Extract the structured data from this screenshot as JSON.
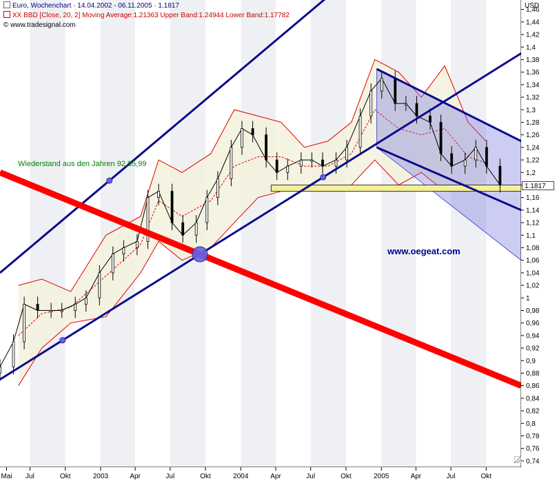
{
  "header": {
    "title": "Euro, Wochenchart · 14.04.2002 - 06.11.2005 · 1.1817",
    "indicator": "XX BBD [Close, 20, 2] Moving Average:1.21363 Upper Band:1.24944 Lower Band:1.17782",
    "source": "© www.tradesignal.com"
  },
  "annotations": {
    "resistance_note": "Wiederstand aus den Jahren 92,95,99",
    "watermark": "www.oegeat.com"
  },
  "axis": {
    "unit": "USD",
    "current_price": "1.1817"
  },
  "chart_data": {
    "type": "line",
    "title": "",
    "xlabel": "",
    "ylabel": "USD",
    "x_tick_labels": [
      "Mai",
      "Jul",
      "Okt",
      "2003",
      "Apr",
      "Jul",
      "Okt",
      "2004",
      "Apr",
      "Jul",
      "Okt",
      "2005",
      "Apr",
      "Jul",
      "Okt"
    ],
    "x_tick_dates": [
      "2002-05-01",
      "2002-07-01",
      "2002-10-01",
      "2003-01-01",
      "2003-04-01",
      "2003-07-01",
      "2003-10-01",
      "2004-01-01",
      "2004-04-01",
      "2004-07-01",
      "2004-10-01",
      "2005-01-01",
      "2005-04-01",
      "2005-07-01",
      "2005-10-01"
    ],
    "x_range": [
      "2002-04-14",
      "2005-12-31"
    ],
    "y_tick_labels": [
      "0,74",
      "0,76",
      "0,78",
      "0,8",
      "0,82",
      "0,84",
      "0,86",
      "0,88",
      "0,9",
      "0,92",
      "0,94",
      "0,96",
      "0,98",
      "1",
      "1,02",
      "1,04",
      "1,06",
      "1,08",
      "1,1",
      "1,12",
      "1,14",
      "1,16",
      "1,18",
      "1,2",
      "1,22",
      "1,24",
      "1,26",
      "1,28",
      "1,3",
      "1,32",
      "1,34",
      "1,36",
      "1,38",
      "1,4",
      "1,42",
      "1,44",
      "1,46"
    ],
    "ylim": [
      0.73,
      1.475
    ],
    "grid": false,
    "shaded_quarters": true,
    "colors": {
      "candle": "#000000",
      "bollinger": "#e00000",
      "bollinger_fill": "#f3f1dc",
      "channel": "#0a0a8c",
      "resistance_line": "#ff0000",
      "down_channel_fill": "#7070e0",
      "support_box": "#f5ef9a",
      "marker": "#6464e6"
    },
    "series": [
      {
        "type": "candlestick",
        "x": [
          "2002-04-14",
          "2002-05-19",
          "2002-06-16",
          "2002-07-21",
          "2002-08-25",
          "2002-09-22",
          "2002-10-27",
          "2002-11-24",
          "2002-12-29",
          "2003-02-02",
          "2003-03-02",
          "2003-04-06",
          "2003-05-04",
          "2003-06-01",
          "2003-07-06",
          "2003-08-03",
          "2003-09-07",
          "2003-10-05",
          "2003-11-02",
          "2003-12-07",
          "2004-01-04",
          "2004-02-01",
          "2004-03-07",
          "2004-04-04",
          "2004-05-02",
          "2004-06-06",
          "2004-07-04",
          "2004-08-01",
          "2004-09-05",
          "2004-10-03",
          "2004-11-07",
          "2004-12-05",
          "2005-01-02",
          "2005-02-06",
          "2005-03-06",
          "2005-04-03",
          "2005-05-08",
          "2005-06-05",
          "2005-07-03",
          "2005-08-07",
          "2005-09-04",
          "2005-10-02",
          "2005-11-06"
        ],
        "close": [
          0.89,
          0.93,
          0.99,
          0.98,
          0.98,
          0.98,
          0.99,
          1.0,
          1.04,
          1.07,
          1.08,
          1.09,
          1.16,
          1.17,
          1.12,
          1.1,
          1.12,
          1.16,
          1.19,
          1.24,
          1.27,
          1.26,
          1.22,
          1.2,
          1.21,
          1.22,
          1.22,
          1.21,
          1.22,
          1.24,
          1.29,
          1.33,
          1.35,
          1.31,
          1.31,
          1.29,
          1.28,
          1.23,
          1.21,
          1.22,
          1.24,
          1.21,
          1.18
        ]
      },
      {
        "type": "bollinger_upper",
        "x": [
          "2002-06-01",
          "2002-08-01",
          "2002-10-15",
          "2003-01-15",
          "2003-04-15",
          "2003-06-01",
          "2003-08-01",
          "2003-10-15",
          "2003-12-15",
          "2004-02-15",
          "2004-04-15",
          "2004-06-15",
          "2004-08-15",
          "2004-10-15",
          "2004-12-15",
          "2005-02-15",
          "2005-04-15",
          "2005-06-15",
          "2005-08-15",
          "2005-09-30"
        ],
        "values": [
          1.02,
          1.03,
          1.01,
          1.1,
          1.13,
          1.22,
          1.2,
          1.23,
          1.3,
          1.29,
          1.28,
          1.24,
          1.25,
          1.28,
          1.38,
          1.36,
          1.32,
          1.37,
          1.28,
          1.25
        ]
      },
      {
        "type": "bollinger_lower",
        "x": [
          "2002-06-01",
          "2002-08-01",
          "2002-10-15",
          "2003-01-15",
          "2003-04-15",
          "2003-06-01",
          "2003-08-01",
          "2003-10-15",
          "2003-12-15",
          "2004-02-15",
          "2004-04-15",
          "2004-06-15",
          "2004-08-15",
          "2004-10-15",
          "2004-12-15",
          "2005-02-15",
          "2005-04-15",
          "2005-06-15",
          "2005-08-15",
          "2005-09-30"
        ],
        "values": [
          0.86,
          0.92,
          0.96,
          0.97,
          1.04,
          1.09,
          1.06,
          1.08,
          1.12,
          1.16,
          1.17,
          1.18,
          1.17,
          1.18,
          1.22,
          1.18,
          1.2,
          1.17,
          1.17,
          1.18
        ]
      },
      {
        "type": "channel_up_upper",
        "x": [
          "2002-04-14",
          "2005-12-31"
        ],
        "values": [
          1.04,
          1.74
        ]
      },
      {
        "type": "channel_up_lower",
        "x": [
          "2002-04-14",
          "2005-12-31"
        ],
        "values": [
          0.87,
          1.39
        ]
      },
      {
        "type": "resistance_line",
        "x": [
          "2002-04-14",
          "2005-12-31"
        ],
        "values": [
          1.2,
          0.86
        ]
      },
      {
        "type": "down_channel_upper",
        "x": [
          "2004-12-20",
          "2005-12-31"
        ],
        "values": [
          1.365,
          1.25
        ]
      },
      {
        "type": "down_channel_lower",
        "x": [
          "2004-12-20",
          "2005-12-31"
        ],
        "values": [
          1.24,
          1.14
        ]
      },
      {
        "type": "support_zone",
        "x": [
          "2004-03-20",
          "2005-12-31"
        ],
        "values": [
          1.17,
          1.18
        ]
      }
    ]
  }
}
